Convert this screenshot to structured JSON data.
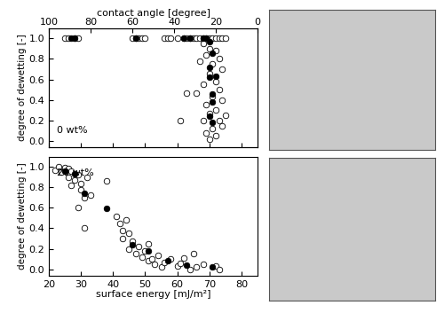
{
  "chart_data": [
    {
      "type": "scatter",
      "ylabel": "degree of dewetting [-]",
      "x2label": "contact angle [degree]",
      "annotation": "0 wt%",
      "xlim": [
        20,
        85
      ],
      "xticks": [
        20,
        30,
        40,
        50,
        60,
        70,
        80
      ],
      "x2lim": [
        100,
        0
      ],
      "x2ticks": [
        100,
        80,
        60,
        40,
        20,
        0
      ],
      "ylim": [
        -0.06,
        1.1
      ],
      "yticks": [
        {
          "value": 0,
          "label": "0.0"
        },
        {
          "value": 0.2,
          "label": "0.2"
        },
        {
          "value": 0.4,
          "label": "0.4"
        },
        {
          "value": 0.6,
          "label": "0.6"
        },
        {
          "value": 0.8,
          "label": "0.8"
        },
        {
          "value": 1.0,
          "label": "1.0"
        }
      ],
      "tick_labels": "y",
      "series": [
        {
          "color": "#ffffff",
          "marker": "o",
          "x": [
            25,
            26,
            28,
            29,
            46,
            47,
            48,
            49,
            50,
            56,
            57,
            58,
            60,
            62,
            63,
            64,
            65,
            66,
            67,
            68,
            69,
            70,
            71,
            72,
            73,
            74,
            75,
            68,
            70,
            72,
            69,
            73,
            67,
            71,
            74,
            70,
            72,
            68,
            73,
            66,
            71,
            74,
            69,
            72,
            70,
            75,
            68,
            73,
            71,
            69,
            72,
            70,
            74,
            61,
            63
          ],
          "values": [
            1.0,
            1.0,
            1.0,
            1.0,
            1.0,
            1.0,
            1.0,
            1.0,
            1.0,
            1.0,
            1.0,
            1.0,
            1.0,
            1.0,
            1.0,
            1.0,
            1.0,
            1.0,
            1.0,
            1.0,
            1.0,
            1.0,
            1.0,
            1.0,
            1.0,
            1.0,
            1.0,
            0.95,
            0.9,
            0.88,
            0.84,
            0.8,
            0.78,
            0.75,
            0.7,
            0.66,
            0.58,
            0.55,
            0.5,
            0.47,
            0.43,
            0.4,
            0.35,
            0.3,
            0.27,
            0.25,
            0.2,
            0.2,
            0.12,
            0.08,
            0.05,
            0.02,
            0.15,
            0.2,
            0.47
          ]
        },
        {
          "color": "#000000",
          "marker": "o",
          "x": [
            27,
            28,
            47,
            62,
            64,
            68,
            69,
            70,
            71,
            70,
            70,
            72,
            71,
            71,
            70,
            71
          ],
          "values": [
            1.0,
            1.0,
            1.0,
            1.0,
            1.0,
            1.0,
            1.0,
            0.97,
            0.86,
            0.72,
            0.62,
            0.63,
            0.46,
            0.38,
            0.24,
            0.18
          ]
        }
      ]
    },
    {
      "type": "scatter",
      "xlabel": "surface energy [mJ/m²]",
      "ylabel": "degree of dewetting [-]",
      "annotation": "20 wt%",
      "xlim": [
        20,
        85
      ],
      "xticks": [
        20,
        30,
        40,
        50,
        60,
        70,
        80
      ],
      "ylim": [
        -0.06,
        1.1
      ],
      "yticks": [
        {
          "value": 0,
          "label": "0.0"
        },
        {
          "value": 0.2,
          "label": "0.2"
        },
        {
          "value": 0.4,
          "label": "0.4"
        },
        {
          "value": 0.6,
          "label": "0.6"
        },
        {
          "value": 0.8,
          "label": "0.8"
        },
        {
          "value": 1.0,
          "label": "1.0"
        }
      ],
      "series": [
        {
          "color": "#ffffff",
          "marker": "o",
          "x": [
            22,
            23,
            24,
            25,
            26,
            26,
            27,
            27,
            28,
            29,
            29,
            30,
            30,
            31,
            31,
            32,
            33,
            38,
            41,
            42,
            43,
            43,
            44,
            45,
            45,
            46,
            47,
            48,
            49,
            50,
            51,
            51,
            52,
            53,
            54,
            55,
            56,
            58,
            60,
            61,
            62,
            64,
            65,
            66,
            68,
            72,
            73
          ],
          "values": [
            0.97,
            1.0,
            0.95,
            0.99,
            0.9,
            0.98,
            0.96,
            0.82,
            0.87,
            0.92,
            0.6,
            0.84,
            0.78,
            0.7,
            0.4,
            0.9,
            0.72,
            0.86,
            0.52,
            0.45,
            0.38,
            0.3,
            0.48,
            0.35,
            0.2,
            0.27,
            0.15,
            0.22,
            0.12,
            0.18,
            0.25,
            0.08,
            0.1,
            0.05,
            0.14,
            0.02,
            0.07,
            0.1,
            0.03,
            0.06,
            0.11,
            0.0,
            0.15,
            0.02,
            0.05,
            0.03,
            0.0
          ]
        },
        {
          "color": "#000000",
          "marker": "o",
          "x": [
            25,
            28,
            31,
            38,
            46,
            51,
            57,
            63,
            71
          ],
          "values": [
            0.96,
            0.93,
            0.74,
            0.59,
            0.24,
            0.18,
            0.08,
            0.04,
            0.02
          ]
        }
      ]
    }
  ]
}
